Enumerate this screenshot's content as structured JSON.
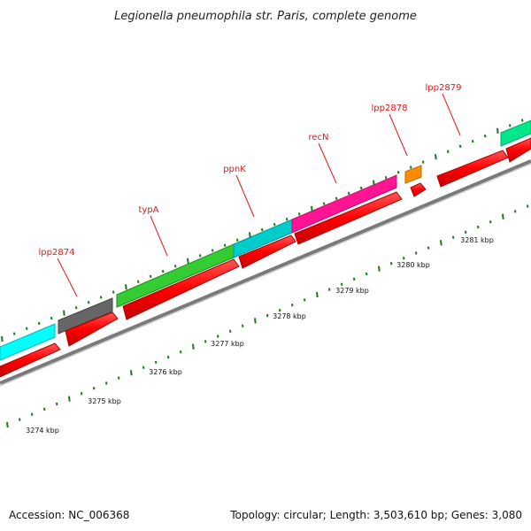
{
  "title": "Legionella pneumophila str. Paris, complete genome",
  "footer": {
    "accession": "Accession: NC_006368",
    "summary": "Topology: circular; Length: 3,503,610 bp; Genes: 3,080"
  },
  "colors": {
    "cds": "#ff0000",
    "backbone": "#808080",
    "ticks": "#1a7a1a",
    "label": "#e8141b"
  },
  "gene_labels": [
    "lpp2874",
    "typA",
    "ppnK",
    "recN",
    "lpp2878",
    "lpp2879"
  ],
  "kbp_labels": [
    "3274 kbp",
    "3275 kbp",
    "3276 kbp",
    "3277 kbp",
    "3278 kbp",
    "3279 kbp",
    "3280 kbp",
    "3281 kbp"
  ],
  "cog_colors": [
    "#00ffff",
    "#666666",
    "#33cc33",
    "#00cccc",
    "#ff1493",
    "#ff8c00",
    "#00e68a"
  ]
}
